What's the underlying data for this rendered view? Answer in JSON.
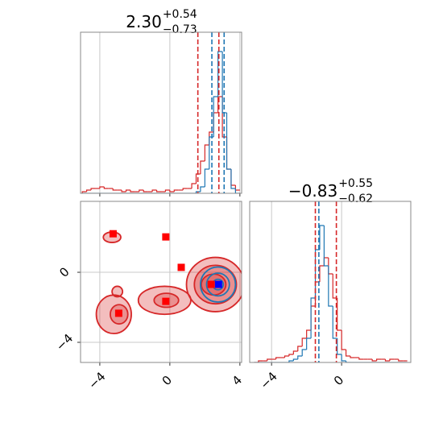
{
  "chart_data": [
    {
      "type": "histogram",
      "title": {
        "value": "2.30",
        "upper": "+0.54",
        "lower": "−0.73"
      },
      "xlim": [
        -5.1,
        4.1
      ],
      "xticks": [
        {
          "value": -4,
          "label": "−4"
        },
        0,
        4
      ],
      "ylim": [
        0,
        100
      ],
      "grid": true,
      "bins": [
        -5,
        -4.75,
        -4.5,
        -4.25,
        -4,
        -3.75,
        -3.5,
        -3.25,
        -3,
        -2.75,
        -2.5,
        -2.25,
        -2,
        -1.75,
        -1.5,
        -1.25,
        -1,
        -0.75,
        -0.5,
        -0.25,
        0,
        0.25,
        0.5,
        0.75,
        1,
        1.25,
        1.5,
        1.75,
        2,
        2.25,
        2.5,
        2.75,
        3,
        3.25,
        3.5,
        3.75,
        4
      ],
      "series": [
        {
          "color": "#d62728",
          "values": [
            1,
            2,
            3,
            3,
            4,
            3,
            3,
            2,
            2,
            1,
            2,
            1,
            1,
            2,
            1,
            1,
            2,
            1,
            1,
            2,
            1,
            2,
            2,
            3,
            3,
            6,
            12,
            20,
            30,
            38,
            50,
            60,
            35,
            15,
            5,
            2
          ]
        },
        {
          "color": "#1f77b4",
          "values": [
            0,
            0,
            0,
            0,
            0,
            0,
            0,
            0,
            0,
            0,
            0,
            0,
            0,
            0,
            0,
            0,
            0,
            0,
            0,
            0,
            0,
            0,
            0,
            0,
            0,
            0,
            1,
            4,
            15,
            35,
            60,
            88,
            50,
            15,
            3,
            0
          ]
        }
      ],
      "quantiles": [
        {
          "value": 1.6,
          "color": "#d62728"
        },
        {
          "value": 2.4,
          "color": "#1f77b4"
        },
        {
          "value": 2.8,
          "color": "#d62728"
        },
        {
          "value": 3.1,
          "color": "#1f77b4"
        }
      ]
    },
    {
      "type": "contour",
      "xlim": [
        -5.1,
        4.1
      ],
      "ylim": [
        -5.15,
        4.05
      ],
      "xticks": [
        {
          "value": -4,
          "label": "−4"
        },
        0,
        4
      ],
      "yticks": [
        {
          "value": -4,
          "label": "−4"
        },
        0
      ],
      "grid": true,
      "contours": [
        {
          "x": 2.6,
          "y": -0.7,
          "rx": 1.65,
          "ry": 1.55,
          "color": "#d62728",
          "filled": true
        },
        {
          "x": 2.6,
          "y": -0.7,
          "rx": 1.2,
          "ry": 1.1,
          "color": "#d62728",
          "filled": true
        },
        {
          "x": 2.5,
          "y": -0.7,
          "rx": 0.7,
          "ry": 0.6,
          "color": "#d62728",
          "filled": true
        },
        {
          "x": -0.3,
          "y": -1.6,
          "rx": 1.5,
          "ry": 0.8,
          "color": "#d62728",
          "filled": true
        },
        {
          "x": -0.2,
          "y": -1.6,
          "rx": 0.7,
          "ry": 0.4,
          "color": "#d62728",
          "filled": true
        },
        {
          "x": -3.2,
          "y": -2.4,
          "rx": 1.0,
          "ry": 1.1,
          "color": "#d62728",
          "filled": true
        },
        {
          "x": -2.9,
          "y": -2.4,
          "rx": 0.5,
          "ry": 0.55,
          "color": "#d62728",
          "filled": true
        },
        {
          "x": -3.0,
          "y": -1.1,
          "rx": 0.3,
          "ry": 0.3,
          "color": "#d62728",
          "filled": true
        },
        {
          "x": -3.3,
          "y": 2.0,
          "rx": 0.5,
          "ry": 0.3,
          "color": "#d62728",
          "filled": true
        },
        {
          "x": 2.75,
          "y": -0.7,
          "rx": 1.0,
          "ry": 1.0,
          "color": "#1f77b4",
          "filled": false
        },
        {
          "x": 2.75,
          "y": -0.7,
          "rx": 0.65,
          "ry": 0.65,
          "color": "#1f77b4",
          "filled": false
        },
        {
          "x": 2.75,
          "y": -0.7,
          "rx": 0.3,
          "ry": 0.3,
          "color": "#1f77b4",
          "filled": false
        }
      ],
      "series": [
        {
          "color": "#ff0000",
          "x": [
            -3.24,
            -0.23,
            0.65,
            2.36,
            -0.23,
            -2.92
          ],
          "y": [
            2.2,
            2.02,
            0.28,
            -0.69,
            -1.66,
            -2.34
          ]
        },
        {
          "color": "#0000ff",
          "x": [
            2.78
          ],
          "y": [
            -0.69
          ]
        }
      ]
    },
    {
      "type": "histogram",
      "title": {
        "value": "−0.83",
        "upper": "+0.55",
        "lower": "−0.62"
      },
      "xlim": [
        -5.25,
        3.95
      ],
      "xticks": [
        {
          "value": -4,
          "label": "−4"
        },
        0
      ],
      "ylim": [
        0,
        100
      ],
      "grid": true,
      "bins": [
        -5,
        -4.75,
        -4.5,
        -4.25,
        -4,
        -3.75,
        -3.5,
        -3.25,
        -3,
        -2.75,
        -2.5,
        -2.25,
        -2,
        -1.75,
        -1.5,
        -1.25,
        -1,
        -0.75,
        -0.5,
        -0.25,
        0,
        0.25,
        0.5,
        0.75,
        1,
        1.25,
        1.5,
        1.75,
        2,
        2.25,
        2.5,
        2.75,
        3,
        3.25,
        3.5,
        3.75
      ],
      "series": [
        {
          "color": "#d62728",
          "values": [
            0,
            1,
            1,
            2,
            2,
            3,
            3,
            4,
            5,
            7,
            10,
            15,
            20,
            35,
            50,
            60,
            65,
            55,
            40,
            20,
            8,
            4,
            3,
            3,
            2,
            2,
            2,
            1,
            2,
            2,
            1,
            2,
            2,
            1,
            1
          ]
        },
        {
          "color": "#1f77b4",
          "values": [
            0,
            0,
            0,
            0,
            0,
            0,
            0,
            0,
            1,
            2,
            4,
            8,
            15,
            40,
            70,
            85,
            60,
            35,
            15,
            5,
            1,
            0,
            0,
            0,
            0,
            0,
            0,
            0,
            0,
            0,
            0,
            0,
            0,
            0,
            0
          ]
        }
      ],
      "quantiles": [
        {
          "value": -1.5,
          "color": "#d62728"
        },
        {
          "value": -1.3,
          "color": "#1f77b4"
        },
        {
          "value": -0.3,
          "color": "#d62728"
        }
      ]
    }
  ]
}
